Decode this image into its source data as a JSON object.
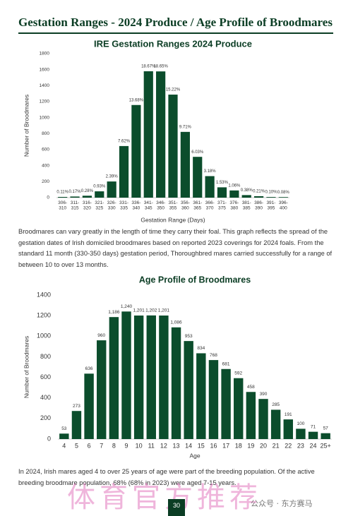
{
  "header": {
    "title": "Gestation Ranges - 2024 Produce / Age Profile of Broodmares"
  },
  "chart_data": [
    {
      "type": "bar",
      "title": "IRE Gestation Ranges 2024 Produce",
      "x_label": "Gestation Range (Days)",
      "y_label": "Number of Broodmares",
      "categories": [
        "306-310",
        "311-315",
        "316-320",
        "321-325",
        "326-330",
        "331-335",
        "336-340",
        "341-345",
        "346-350",
        "351-355",
        "356-360",
        "361-365",
        "366-370",
        "371-375",
        "376-380",
        "381-385",
        "386-390",
        "391-395",
        "396-400"
      ],
      "values": [
        9,
        14,
        24,
        79,
        202,
        645,
        1158,
        1580,
        1578,
        1288,
        822,
        510,
        269,
        129,
        90,
        32,
        18,
        8,
        7
      ],
      "percent_labels": [
        "0.11%",
        "0.17%",
        "0.28%",
        "0.93%",
        "2.39%",
        "7.62%",
        "13.68%",
        "18.67%",
        "18.65%",
        "15.22%",
        "9.71%",
        "6.03%",
        "3.18%",
        "1.53%",
        "1.06%",
        "0.38%",
        "0.21%",
        "0.10%",
        "0.08%"
      ],
      "color": "#0b4d2c",
      "ylim": [
        0,
        1800
      ],
      "yticks": [
        0,
        200,
        400,
        600,
        800,
        1000,
        1200,
        1400,
        1600,
        1800
      ],
      "grid": false
    },
    {
      "type": "bar",
      "title": "Age Profile of Broodmares",
      "x_label": "Age",
      "y_label": "Number of Broodmares",
      "categories": [
        "4",
        "5",
        "6",
        "7",
        "8",
        "9",
        "10",
        "11",
        "12",
        "13",
        "14",
        "15",
        "16",
        "17",
        "18",
        "19",
        "20",
        "21",
        "22",
        "23",
        "24",
        "25+"
      ],
      "values": [
        53,
        273,
        636,
        960,
        1186,
        1240,
        1201,
        1202,
        1201,
        1086,
        953,
        834,
        768,
        681,
        592,
        458,
        390,
        285,
        191,
        100,
        71,
        57
      ],
      "value_labels": [
        "53",
        "273",
        "636",
        "960",
        "1,186",
        "1,240",
        "1,201",
        "1,202",
        "1,201",
        "1,086",
        "953",
        "834",
        "768",
        "681",
        "592",
        "458",
        "390",
        "285",
        "191",
        "100",
        "71",
        "57"
      ],
      "color": "#0b4d2c",
      "ylim": [
        0,
        1400
      ],
      "yticks": [
        0,
        200,
        400,
        600,
        800,
        1000,
        1200,
        1400
      ],
      "grid": false
    }
  ],
  "paragraphs": [
    "Broodmares can vary greatly in the length of time they carry their foal. This graph reflects the spread of the gestation dates of Irish domiciled broodmares based on reported 2023 coverings for 2024 foals. From the standard 11 month (330-350 days) gestation period, Thoroughbred mares carried successfully for a range of between 10 to over 13 months.",
    "In 2024, Irish mares aged 4 to over 25 years of age were part of the breeding population. Of the active breeding broodmare population, 68% (68% in 2023) were aged 7-15 years."
  ],
  "page_number": "30",
  "watermarks": [
    "体育官方推荐",
    "公众号 · 东方赛马"
  ]
}
